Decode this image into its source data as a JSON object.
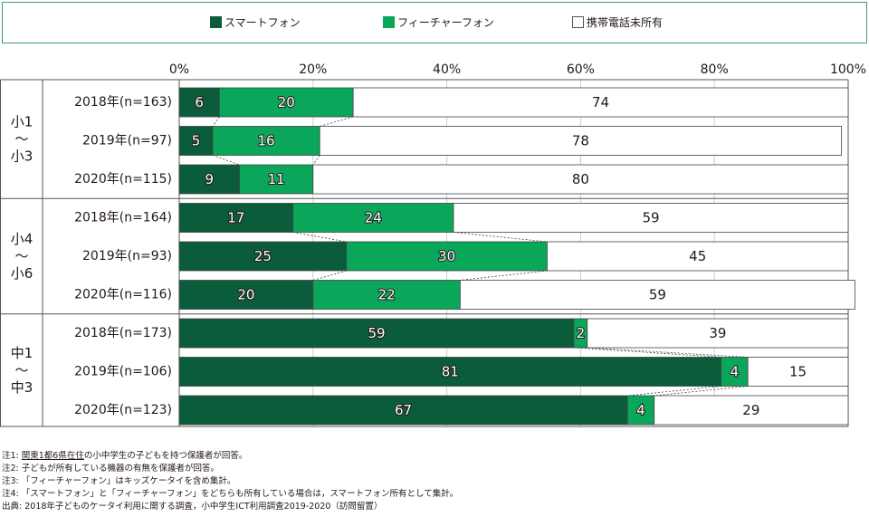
{
  "legend": [
    {
      "label": "スマートフォン",
      "color": "#0b5c3a"
    },
    {
      "label": "フィーチャーフォン",
      "color": "#0aa65a"
    },
    {
      "label": "携帯電話未所有",
      "color": "#ffffff"
    }
  ],
  "chart_data": {
    "type": "bar",
    "orientation": "horizontal",
    "stacked": true,
    "percent_axis": true,
    "xlim": [
      0,
      100
    ],
    "x_ticks": [
      "0%",
      "20%",
      "40%",
      "60%",
      "80%",
      "100%"
    ],
    "groups": [
      {
        "label": [
          "小1",
          "〜",
          "小3"
        ],
        "rows": [
          0,
          1,
          2
        ]
      },
      {
        "label": [
          "小4",
          "〜",
          "小6"
        ],
        "rows": [
          3,
          4,
          5
        ]
      },
      {
        "label": [
          "中1",
          "〜",
          "中3"
        ],
        "rows": [
          6,
          7,
          8
        ]
      }
    ],
    "categories": [
      "2018年(n=163)",
      "2019年(n=97)",
      "2020年(n=115)",
      "2018年(n=164)",
      "2019年(n=93)",
      "2020年(n=116)",
      "2018年(n=173)",
      "2019年(n=106)",
      "2020年(n=123)"
    ],
    "series": [
      {
        "name": "スマートフォン",
        "values": [
          6,
          5,
          9,
          17,
          25,
          20,
          59,
          81,
          67
        ]
      },
      {
        "name": "フィーチャーフォン",
        "values": [
          20,
          16,
          11,
          24,
          30,
          22,
          2,
          4,
          4
        ]
      },
      {
        "name": "携帯電話未所有",
        "values": [
          74,
          78,
          80,
          59,
          45,
          59,
          39,
          15,
          29
        ]
      }
    ]
  },
  "notes": [
    {
      "prefix": "注1: ",
      "underlined": "関東1都6県在住",
      "rest": "の小中学生の子どもを持つ保護者が回答。"
    },
    {
      "prefix": "注2: ",
      "underlined": "",
      "rest": "子どもが所有している機器の有無を保護者が回答。"
    },
    {
      "prefix": "注3: ",
      "underlined": "",
      "rest": "「フィーチャーフォン」はキッズケータイを含め集計。"
    },
    {
      "prefix": "注4: ",
      "underlined": "",
      "rest": "「スマートフォン」と「フィーチャーフォン」をどちらも所有している場合は，スマートフォン所有として集計。"
    },
    {
      "prefix": "出典: ",
      "underlined": "",
      "rest": "2018年子どものケータイ利用に関する調査，小中学生ICT利用調査2019-2020（訪問留置）"
    }
  ]
}
